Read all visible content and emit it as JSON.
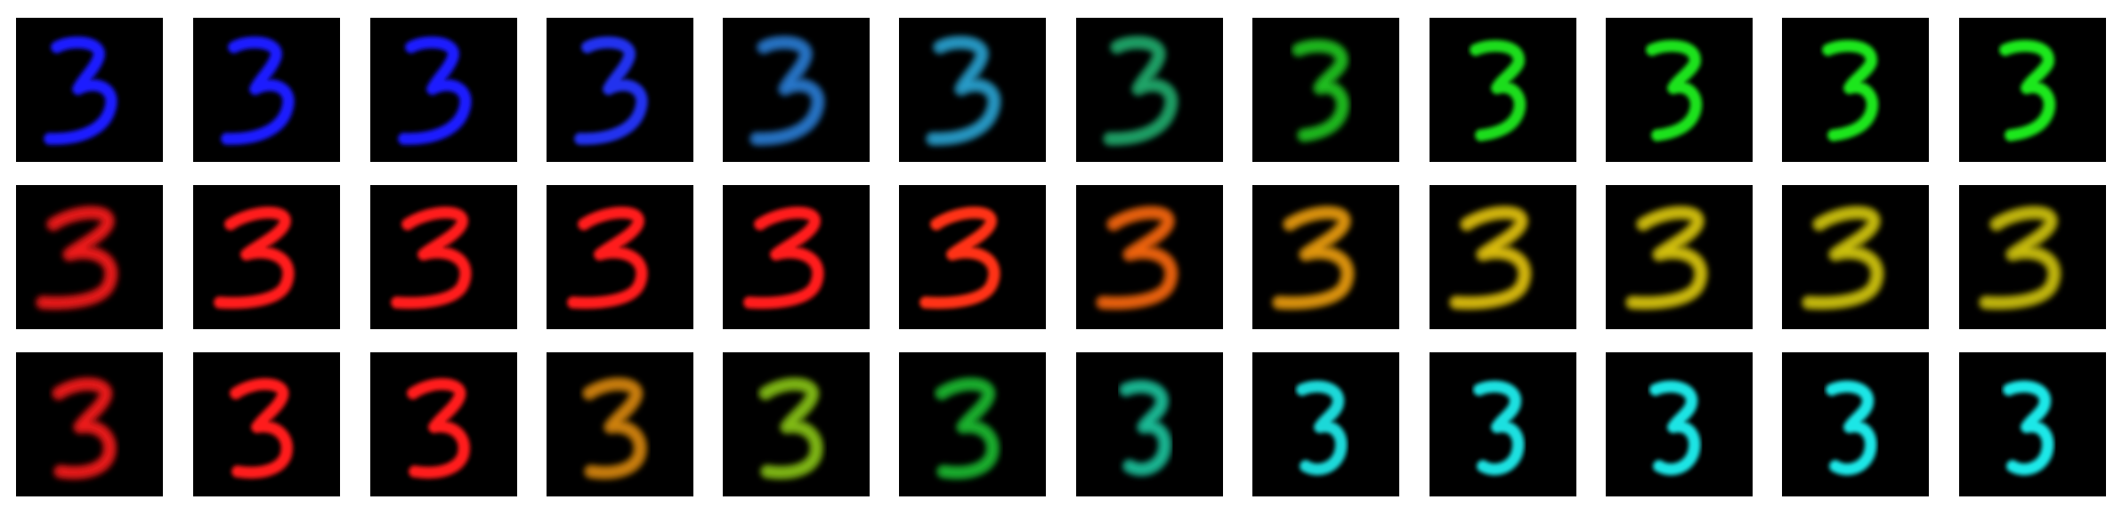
{
  "figure": {
    "digit": "3",
    "background": "#000000",
    "rows": [
      {
        "id": "row-blue-to-green",
        "panels": [
          {
            "color": "#1a1aff",
            "style": "sharp",
            "variant": "a"
          },
          {
            "color": "#1a1aff",
            "style": "sharp",
            "variant": "a"
          },
          {
            "color": "#1a1aff",
            "style": "sharp",
            "variant": "a"
          },
          {
            "color": "#2233ee",
            "style": "sharp",
            "variant": "a"
          },
          {
            "color": "#2a7fd8",
            "style": "soft",
            "variant": "a"
          },
          {
            "color": "#2aa6d6",
            "style": "soft",
            "variant": "a"
          },
          {
            "color": "#22b070",
            "style": "soft",
            "variant": "a"
          },
          {
            "color": "#22cc22",
            "style": "soft",
            "variant": "b"
          },
          {
            "color": "#1fdd1f",
            "style": "sharp",
            "variant": "b"
          },
          {
            "color": "#1fe21f",
            "style": "sharp",
            "variant": "b"
          },
          {
            "color": "#1fe61f",
            "style": "sharp",
            "variant": "b"
          },
          {
            "color": "#1fe81f",
            "style": "sharp",
            "variant": "b"
          }
        ]
      },
      {
        "id": "row-red-to-yellow",
        "panels": [
          {
            "color": "#ff1a1a",
            "style": "soft",
            "variant": "c"
          },
          {
            "color": "#ff1a1a",
            "style": "sharp",
            "variant": "c"
          },
          {
            "color": "#ff1a1a",
            "style": "sharp",
            "variant": "c"
          },
          {
            "color": "#ff1a1a",
            "style": "sharp",
            "variant": "c"
          },
          {
            "color": "#ff1a1a",
            "style": "sharp",
            "variant": "c"
          },
          {
            "color": "#ff3312",
            "style": "sharp",
            "variant": "c"
          },
          {
            "color": "#ff6a10",
            "style": "soft",
            "variant": "c"
          },
          {
            "color": "#f0a010",
            "style": "soft",
            "variant": "c"
          },
          {
            "color": "#e8c810",
            "style": "soft",
            "variant": "c"
          },
          {
            "color": "#e0cc10",
            "style": "soft",
            "variant": "c"
          },
          {
            "color": "#d8cc10",
            "style": "soft",
            "variant": "c"
          },
          {
            "color": "#d4c810",
            "style": "soft",
            "variant": "c"
          }
        ]
      },
      {
        "id": "row-red-to-cyan",
        "panels": [
          {
            "color": "#ff1a1a",
            "style": "soft",
            "variant": "d"
          },
          {
            "color": "#ff1a1a",
            "style": "sharp",
            "variant": "d"
          },
          {
            "color": "#ff1a1a",
            "style": "sharp",
            "variant": "d"
          },
          {
            "color": "#dd8a10",
            "style": "soft",
            "variant": "d"
          },
          {
            "color": "#8ac818",
            "style": "soft",
            "variant": "d"
          },
          {
            "color": "#1fbf30",
            "style": "soft",
            "variant": "d"
          },
          {
            "color": "#1fc8a0",
            "style": "soft",
            "variant": "e"
          },
          {
            "color": "#1fd8d8",
            "style": "sharp",
            "variant": "e"
          },
          {
            "color": "#1fe0e0",
            "style": "sharp",
            "variant": "e"
          },
          {
            "color": "#1fe4e4",
            "style": "sharp",
            "variant": "e"
          },
          {
            "color": "#1fe6e6",
            "style": "sharp",
            "variant": "e"
          },
          {
            "color": "#1fe8e8",
            "style": "sharp",
            "variant": "e"
          }
        ]
      }
    ]
  }
}
